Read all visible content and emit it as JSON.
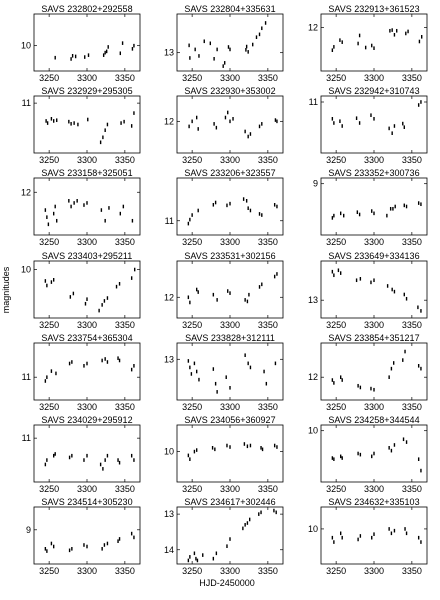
{
  "chart_data": {
    "type": "scatter",
    "xlabel": "HJD-2450000",
    "ylabel": "magnitudes",
    "xlim": [
      3230,
      3370
    ],
    "x_ticks": [
      "3250",
      "3300",
      "3350"
    ],
    "y_inverted": true,
    "grid": false,
    "panels": [
      {
        "title": "SAVS 232802+292558",
        "ylim": [
          10.4,
          9.5
        ],
        "y_ticks": [
          "10"
        ],
        "x": [
          3258,
          3279,
          3281,
          3285,
          3297,
          3302,
          3322,
          3324,
          3326,
          3328,
          3344,
          3347,
          3360,
          3362
        ],
        "y": [
          10.19,
          10.21,
          10.16,
          10.17,
          10.18,
          10.15,
          10.15,
          10.11,
          10.09,
          10.02,
          10.12,
          9.96,
          10.05,
          10.0
        ]
      },
      {
        "title": "SAVS 232804+335631",
        "ylim": [
          13.45,
          12.05
        ],
        "y_ticks": [
          "13"
        ],
        "x": [
          3246,
          3247,
          3254,
          3259,
          3266,
          3274,
          3279,
          3283,
          3291,
          3293,
          3298,
          3300,
          3321,
          3322,
          3324,
          3330,
          3335,
          3339,
          3342,
          3347
        ],
        "y": [
          12.82,
          13.13,
          12.92,
          13.08,
          12.72,
          12.77,
          13.15,
          12.92,
          13.33,
          13.25,
          12.86,
          12.92,
          12.93,
          12.85,
          12.98,
          12.8,
          12.62,
          12.55,
          12.4,
          12.27
        ]
      },
      {
        "title": "SAVS 232913+361523",
        "ylim": [
          12.65,
          11.8
        ],
        "y_ticks": [
          "12"
        ],
        "x": [
          3245,
          3247,
          3255,
          3258,
          3279,
          3281,
          3289,
          3297,
          3300,
          3321,
          3324,
          3327,
          3330,
          3342,
          3345,
          3360,
          3363
        ],
        "y": [
          12.34,
          12.29,
          12.19,
          12.22,
          12.24,
          12.12,
          12.3,
          12.27,
          12.31,
          12.05,
          12.04,
          12.11,
          12.05,
          12.09,
          12.06,
          12.21,
          12.14
        ]
      },
      {
        "title": "SAVS 232929+295305",
        "ylim": [
          11.7,
          10.9
        ],
        "y_ticks": [
          "11"
        ],
        "x": [
          3246,
          3248,
          3253,
          3256,
          3260,
          3276,
          3279,
          3283,
          3288,
          3301,
          3318,
          3321,
          3324,
          3327,
          3345,
          3349,
          3359,
          3362
        ],
        "y": [
          11.25,
          11.28,
          11.22,
          11.25,
          11.24,
          11.26,
          11.29,
          11.28,
          11.3,
          11.23,
          11.55,
          11.48,
          11.38,
          11.3,
          11.28,
          11.26,
          11.32,
          11.14
        ]
      },
      {
        "title": "SAVS 232930+353002",
        "ylim": [
          12.25,
          11.8
        ],
        "y_ticks": [
          "12"
        ],
        "x": [
          3246,
          3250,
          3256,
          3258,
          3279,
          3282,
          3294,
          3297,
          3300,
          3304,
          3320,
          3324,
          3327,
          3339,
          3342,
          3360,
          3362
        ],
        "y": [
          12.04,
          12.0,
          11.97,
          12.06,
          12.02,
          12.05,
          11.97,
          11.93,
          12.0,
          11.98,
          12.08,
          12.12,
          12.1,
          12.04,
          12.02,
          11.99,
          12.0
        ]
      },
      {
        "title": "SAVS 232942+310743",
        "ylim": [
          11.85,
          10.9
        ],
        "y_ticks": [
          "11"
        ],
        "x": [
          3245,
          3247,
          3255,
          3258,
          3277,
          3281,
          3296,
          3300,
          3320,
          3324,
          3327,
          3338,
          3340,
          3359,
          3362
        ],
        "y": [
          11.28,
          11.35,
          11.32,
          11.4,
          11.27,
          11.35,
          11.22,
          11.28,
          11.44,
          11.52,
          11.4,
          11.36,
          11.42,
          11.05,
          11.0
        ]
      },
      {
        "title": "SAVS 233158+325051",
        "ylim": [
          12.6,
          11.8
        ],
        "y_ticks": [
          "12"
        ],
        "x": [
          3245,
          3247,
          3249,
          3256,
          3258,
          3260,
          3276,
          3279,
          3283,
          3287,
          3296,
          3300,
          3319,
          3324,
          3329,
          3344,
          3348,
          3360
        ],
        "y": [
          12.25,
          12.35,
          12.45,
          12.3,
          12.2,
          12.4,
          12.12,
          12.2,
          12.15,
          12.12,
          12.18,
          12.15,
          12.25,
          12.4,
          12.22,
          12.3,
          12.2,
          12.4
        ]
      },
      {
        "title": "SAVS 233206+323557",
        "ylim": [
          11.25,
          10.25
        ],
        "y_ticks": [
          "11"
        ],
        "x": [
          3245,
          3247,
          3250,
          3258,
          3278,
          3281,
          3296,
          3300,
          3318,
          3322,
          3324,
          3327,
          3339,
          3342,
          3359,
          3362
        ],
        "y": [
          11.05,
          10.98,
          10.9,
          10.82,
          10.72,
          10.68,
          10.73,
          10.7,
          10.62,
          10.65,
          10.78,
          10.82,
          10.88,
          10.9,
          10.72,
          10.75
        ]
      },
      {
        "title": "SAVS 233352+300736",
        "ylim": [
          9.45,
          8.95
        ],
        "y_ticks": [
          "9"
        ],
        "x": [
          3245,
          3247,
          3256,
          3260,
          3278,
          3281,
          3297,
          3300,
          3317,
          3322,
          3325,
          3328,
          3340,
          3343,
          3359,
          3362
        ],
        "y": [
          9.3,
          9.28,
          9.26,
          9.28,
          9.25,
          9.27,
          9.24,
          9.26,
          9.28,
          9.22,
          9.22,
          9.2,
          9.19,
          9.2,
          9.17,
          9.18
        ]
      },
      {
        "title": "SAVS 233403+295211",
        "ylim": [
          10.85,
          9.85
        ],
        "y_ticks": [
          "10"
        ],
        "x": [
          3245,
          3247,
          3253,
          3256,
          3278,
          3282,
          3298,
          3300,
          3316,
          3320,
          3323,
          3327,
          3339,
          3343,
          3359,
          3363
        ],
        "y": [
          10.2,
          10.28,
          10.22,
          10.18,
          10.48,
          10.42,
          10.6,
          10.52,
          10.72,
          10.62,
          10.55,
          10.5,
          10.3,
          10.25,
          10.15,
          10.0
        ]
      },
      {
        "title": "SAVS 233531+302156",
        "ylim": [
          12.4,
          11.3
        ],
        "y_ticks": [
          "12"
        ],
        "x": [
          3245,
          3247,
          3256,
          3258,
          3278,
          3283,
          3297,
          3300,
          3320,
          3323,
          3325,
          3339,
          3342,
          3359,
          3362
        ],
        "y": [
          12.0,
          12.1,
          11.85,
          11.9,
          11.95,
          12.05,
          11.88,
          11.92,
          12.05,
          12.08,
          11.95,
          11.8,
          11.75,
          11.6,
          11.55
        ]
      },
      {
        "title": "SAVS 233649+334136",
        "ylim": [
          13.25,
          12.45
        ],
        "y_ticks": [
          "13"
        ],
        "x": [
          3245,
          3247,
          3253,
          3256,
          3277,
          3282,
          3296,
          3300,
          3318,
          3324,
          3327,
          3340,
          3343,
          3358,
          3362
        ],
        "y": [
          12.6,
          12.65,
          12.58,
          12.62,
          12.72,
          12.7,
          12.75,
          12.72,
          12.8,
          12.85,
          12.88,
          12.92,
          12.98,
          13.1,
          13.15
        ]
      },
      {
        "title": "SAVS 233754+365304",
        "ylim": [
          11.3,
          10.55
        ],
        "y_ticks": [
          "11"
        ],
        "x": [
          3245,
          3247,
          3253,
          3259,
          3277,
          3280,
          3296,
          3300,
          3320,
          3324,
          3327,
          3341,
          3343,
          3359,
          3362
        ],
        "y": [
          11.05,
          11.0,
          10.92,
          10.95,
          10.82,
          10.8,
          10.85,
          10.82,
          10.78,
          10.76,
          10.8,
          10.75,
          10.78,
          10.9,
          10.85
        ]
      },
      {
        "title": "SAVS 233828+312111",
        "ylim": [
          13.5,
          12.8
        ],
        "y_ticks": [
          "13"
        ],
        "x": [
          3245,
          3247,
          3249,
          3253,
          3256,
          3259,
          3278,
          3281,
          3283,
          3295,
          3300,
          3320,
          3324,
          3327,
          3345,
          3348,
          3360
        ],
        "y": [
          13.02,
          13.1,
          13.18,
          13.05,
          13.15,
          13.25,
          13.12,
          13.3,
          13.4,
          13.22,
          13.35,
          12.95,
          13.05,
          13.1,
          13.15,
          13.3,
          13.05
        ]
      },
      {
        "title": "SAVS 233854+351217",
        "ylim": [
          12.4,
          11.4
        ],
        "y_ticks": [
          "12"
        ],
        "x": [
          3245,
          3247,
          3256,
          3258,
          3279,
          3282,
          3296,
          3300,
          3320,
          3323,
          3326,
          3338,
          3341,
          3359,
          3362
        ],
        "y": [
          12.05,
          12.1,
          12.0,
          12.05,
          12.15,
          12.18,
          12.2,
          12.22,
          12.0,
          11.85,
          11.75,
          11.7,
          11.55,
          11.8,
          11.85
        ]
      },
      {
        "title": "SAVS 234029+295912",
        "ylim": [
          11.5,
          10.85
        ],
        "y_ticks": [
          "11"
        ],
        "x": [
          3245,
          3247,
          3256,
          3258,
          3277,
          3280,
          3296,
          3300,
          3318,
          3321,
          3324,
          3327,
          3341,
          3343,
          3359,
          3362
        ],
        "y": [
          11.3,
          11.25,
          11.2,
          11.18,
          11.22,
          11.2,
          11.25,
          11.2,
          11.3,
          11.35,
          11.25,
          11.2,
          11.25,
          11.28,
          11.2,
          11.25
        ]
      },
      {
        "title": "SAVS 234056+360927",
        "ylim": [
          10.4,
          9.65
        ],
        "y_ticks": [
          "10"
        ],
        "x": [
          3245,
          3247,
          3253,
          3256,
          3277,
          3280,
          3296,
          3300,
          3319,
          3323,
          3327,
          3341,
          3343,
          3359,
          3362
        ],
        "y": [
          10.05,
          10.1,
          10.0,
          9.98,
          9.95,
          9.97,
          9.92,
          9.94,
          9.9,
          9.93,
          9.92,
          9.95,
          9.97,
          9.92,
          9.94
        ]
      },
      {
        "title": "SAVS 234258+344544",
        "ylim": [
          10.9,
          9.9
        ],
        "y_ticks": [
          "10"
        ],
        "x": [
          3245,
          3247,
          3256,
          3258,
          3279,
          3282,
          3297,
          3300,
          3320,
          3323,
          3327,
          3339,
          3343,
          3359,
          3362
        ],
        "y": [
          10.48,
          10.5,
          10.45,
          10.48,
          10.4,
          10.42,
          10.45,
          10.4,
          10.3,
          10.35,
          10.25,
          10.15,
          10.2,
          10.5,
          10.7
        ]
      },
      {
        "title": "SAVS 234514+305230",
        "ylim": [
          9.45,
          8.7
        ],
        "y_ticks": [
          "9"
        ],
        "x": [
          3245,
          3247,
          3253,
          3256,
          3277,
          3280,
          3296,
          3300,
          3320,
          3323,
          3327,
          3341,
          3343,
          3359,
          3362
        ],
        "y": [
          9.25,
          9.28,
          9.18,
          9.22,
          9.27,
          9.25,
          9.2,
          9.22,
          9.25,
          9.2,
          9.18,
          9.15,
          9.12,
          9.05,
          9.1
        ]
      },
      {
        "title": "SAVS 234617+302446",
        "ylim": [
          14.4,
          12.8
        ],
        "y_ticks": [
          "13",
          "14"
        ],
        "x": [
          3245,
          3247,
          3253,
          3255,
          3257,
          3264,
          3278,
          3282,
          3296,
          3300,
          3317,
          3320,
          3323,
          3326,
          3338,
          3341,
          3358,
          3361
        ],
        "y": [
          14.3,
          14.2,
          14.1,
          14.25,
          14.3,
          14.15,
          14.25,
          14.1,
          13.9,
          13.7,
          13.4,
          13.3,
          13.25,
          13.15,
          13.0,
          12.95,
          12.9,
          12.95
        ]
      },
      {
        "title": "SAVS 234632+335103",
        "ylim": [
          10.4,
          9.75
        ],
        "y_ticks": [
          "10"
        ],
        "x": [
          3245,
          3247,
          3256,
          3258,
          3279,
          3282,
          3297,
          3300,
          3320,
          3323,
          3327,
          3341,
          3343,
          3359,
          3362
        ],
        "y": [
          10.1,
          10.15,
          10.05,
          10.1,
          10.12,
          10.08,
          10.1,
          10.06,
          10.0,
          10.05,
          10.02,
          10.0,
          10.05,
          10.1,
          10.15
        ]
      }
    ]
  }
}
